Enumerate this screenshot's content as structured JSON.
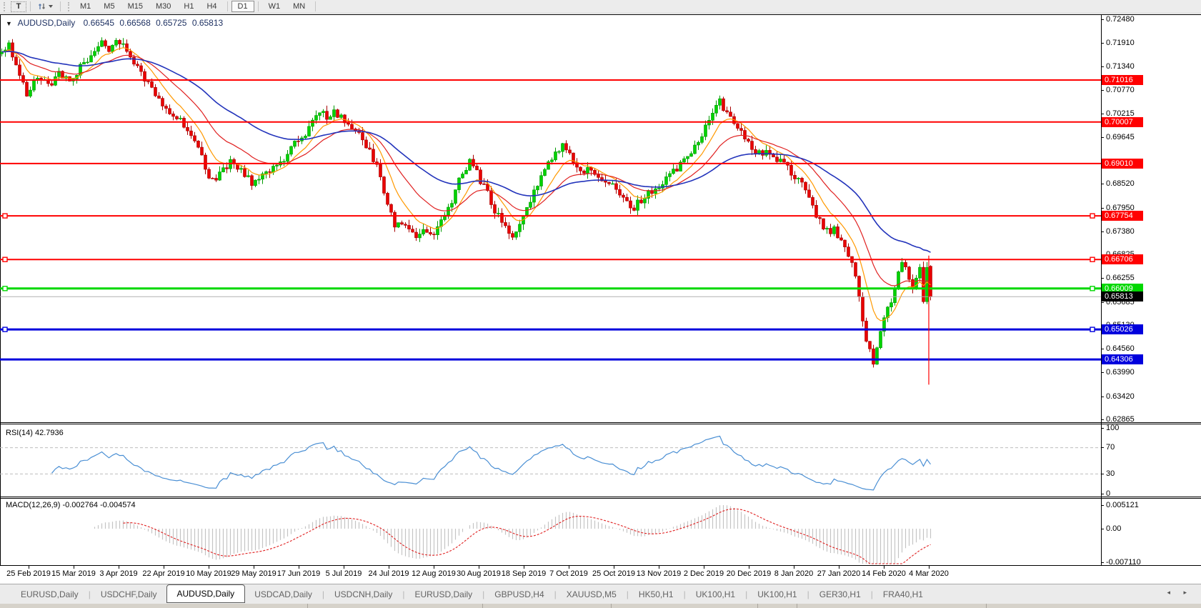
{
  "toolbar": {
    "text_tool_label": "T",
    "timeframes": [
      "M1",
      "M5",
      "M15",
      "M30",
      "H1",
      "H4",
      "D1",
      "W1",
      "MN"
    ],
    "active_timeframe": "D1"
  },
  "chart_header": {
    "symbol": "AUDUSD,Daily",
    "open": "0.66545",
    "high": "0.66568",
    "low": "0.65725",
    "close": "0.65813"
  },
  "price_axis_ticks": [
    "0.72480",
    "0.71910",
    "0.71340",
    "0.70770",
    "0.70215",
    "0.69645",
    "0.68520",
    "0.67950",
    "0.67380",
    "0.66825",
    "0.66255",
    "0.65685",
    "0.65130",
    "0.64560",
    "0.63990",
    "0.63420",
    "0.62865"
  ],
  "current_price_label": "0.65813",
  "hlines": [
    {
      "price": 0.71016,
      "label": "0.71016",
      "color": "#ff0000",
      "width": 2,
      "handles": false
    },
    {
      "price": 0.70007,
      "label": "0.70007",
      "color": "#ff0000",
      "width": 2,
      "handles": false
    },
    {
      "price": 0.6901,
      "label": "0.69010",
      "color": "#ff0000",
      "width": 2,
      "handles": false
    },
    {
      "price": 0.67754,
      "label": "0.67754",
      "color": "#ff0000",
      "width": 2,
      "handles": true
    },
    {
      "price": 0.66706,
      "label": "0.66706",
      "color": "#ff0000",
      "width": 2,
      "handles": true
    },
    {
      "price": 0.66009,
      "label": "0.66009",
      "color": "#00d800",
      "width": 3,
      "handles": true
    },
    {
      "price": 0.65026,
      "label": "0.65026",
      "color": "#0000dd",
      "width": 3,
      "handles": true
    },
    {
      "price": 0.64306,
      "label": "0.64306",
      "color": "#0000dd",
      "width": 3,
      "handles": false
    }
  ],
  "rsi_panel": {
    "label": "RSI(14) 42.7936",
    "axis_ticks": [
      "100",
      "70",
      "30",
      "0"
    ],
    "levels": [
      70,
      30
    ],
    "value": 42.7936
  },
  "macd_panel": {
    "label": "MACD(12,26,9) -0.002764 -0.004574",
    "axis_ticks": [
      "0.005121",
      "0.00",
      "-0.007110"
    ],
    "macd_value": -0.002764,
    "signal_value": -0.004574
  },
  "date_axis": [
    "25 Feb 2019",
    "15 Mar 2019",
    "3 Apr 2019",
    "22 Apr 2019",
    "10 May 2019",
    "29 May 2019",
    "17 Jun 2019",
    "5 Jul 2019",
    "24 Jul 2019",
    "12 Aug 2019",
    "30 Aug 2019",
    "18 Sep 2019",
    "7 Oct 2019",
    "25 Oct 2019",
    "13 Nov 2019",
    "2 Dec 2019",
    "20 Dec 2019",
    "8 Jan 2020",
    "27 Jan 2020",
    "14 Feb 2020",
    "4 Mar 2020"
  ],
  "tabs": {
    "items": [
      "EURUSD,Daily",
      "USDCHF,Daily",
      "AUDUSD,Daily",
      "USDCAD,Daily",
      "USDCNH,Daily",
      "EURUSD,Daily",
      "GBPUSD,H4",
      "XAUUSD,M5",
      "HK50,H1",
      "UK100,H1",
      "UK100,H1",
      "GER30,H1",
      "FRA40,H1"
    ],
    "active_index": 2,
    "nav_arrows": "◂ ▸"
  },
  "colors": {
    "up": "#00d200",
    "up_stroke": "#009a00",
    "down": "#e80000",
    "down_stroke": "#a80000",
    "ma_fast": "#ff9900",
    "ma_mid": "#e02020",
    "ma_slow": "#2233bb",
    "rsi": "#4a8fd4",
    "rsi_level_dash": "#bdbdbd",
    "macd_hist": "#c4c4c4",
    "macd_signal": "#e02020",
    "current_price_line": "#b0b0b0",
    "current_price_box": "#000000",
    "vline": "#ff0000"
  },
  "chart_data": {
    "type": "candlestick",
    "symbol": "AUDUSD",
    "timeframe": "Daily",
    "title": "AUDUSD,Daily 0.66545 0.66568 0.65725 0.65813",
    "x_range": [
      "25 Feb 2019",
      "6 Mar 2020"
    ],
    "y_range": [
      0.62865,
      0.7248
    ],
    "bar_count": 261,
    "last_bar": {
      "open": 0.66545,
      "high": 0.66568,
      "low": 0.65725,
      "close": 0.65813
    },
    "close_path": [
      [
        0,
        0.7165
      ],
      [
        2,
        0.7191
      ],
      [
        5,
        0.7114
      ],
      [
        7,
        0.7071
      ],
      [
        10,
        0.7105
      ],
      [
        13,
        0.7088
      ],
      [
        16,
        0.7114
      ],
      [
        19,
        0.7097
      ],
      [
        22,
        0.7131
      ],
      [
        25,
        0.7165
      ],
      [
        28,
        0.7194
      ],
      [
        30,
        0.7174
      ],
      [
        32,
        0.7191
      ],
      [
        34,
        0.7182
      ],
      [
        37,
        0.7139
      ],
      [
        40,
        0.7105
      ],
      [
        43,
        0.7071
      ],
      [
        46,
        0.7036
      ],
      [
        49,
        0.7011
      ],
      [
        52,
        0.6985
      ],
      [
        55,
        0.6933
      ],
      [
        58,
        0.6873
      ],
      [
        60,
        0.6865
      ],
      [
        62,
        0.6891
      ],
      [
        64,
        0.6903
      ],
      [
        67,
        0.6882
      ],
      [
        70,
        0.6856
      ],
      [
        72,
        0.6865
      ],
      [
        75,
        0.6882
      ],
      [
        77,
        0.6899
      ],
      [
        80,
        0.6916
      ],
      [
        82,
        0.6951
      ],
      [
        85,
        0.6976
      ],
      [
        87,
        0.7002
      ],
      [
        90,
        0.7033
      ],
      [
        91,
        0.7011
      ],
      [
        93,
        0.7028
      ],
      [
        96,
        0.7002
      ],
      [
        98,
        0.6985
      ],
      [
        101,
        0.6959
      ],
      [
        103,
        0.6933
      ],
      [
        105,
        0.6891
      ],
      [
        107,
        0.6831
      ],
      [
        109,
        0.6779
      ],
      [
        110,
        0.6745
      ],
      [
        112,
        0.6762
      ],
      [
        114,
        0.6736
      ],
      [
        116,
        0.6719
      ],
      [
        118,
        0.6745
      ],
      [
        120,
        0.6728
      ],
      [
        122,
        0.6748
      ],
      [
        124,
        0.677
      ],
      [
        126,
        0.6813
      ],
      [
        128,
        0.6868
      ],
      [
        130,
        0.6891
      ],
      [
        131,
        0.6903
      ],
      [
        133,
        0.6882
      ],
      [
        134,
        0.6856
      ],
      [
        136,
        0.6831
      ],
      [
        138,
        0.6788
      ],
      [
        140,
        0.6762
      ],
      [
        142,
        0.6736
      ],
      [
        143,
        0.6722
      ],
      [
        145,
        0.6753
      ],
      [
        147,
        0.6788
      ],
      [
        149,
        0.6831
      ],
      [
        151,
        0.6873
      ],
      [
        153,
        0.6908
      ],
      [
        155,
        0.6925
      ],
      [
        157,
        0.6942
      ],
      [
        159,
        0.6925
      ],
      [
        161,
        0.6899
      ],
      [
        163,
        0.6882
      ],
      [
        165,
        0.6891
      ],
      [
        167,
        0.6873
      ],
      [
        169,
        0.6856
      ],
      [
        171,
        0.6848
      ],
      [
        173,
        0.6831
      ],
      [
        175,
        0.6805
      ],
      [
        177,
        0.6796
      ],
      [
        179,
        0.6813
      ],
      [
        181,
        0.6831
      ],
      [
        183,
        0.6839
      ],
      [
        185,
        0.6856
      ],
      [
        187,
        0.6873
      ],
      [
        189,
        0.6891
      ],
      [
        191,
        0.6908
      ],
      [
        193,
        0.6925
      ],
      [
        195,
        0.6951
      ],
      [
        197,
        0.6993
      ],
      [
        199,
        0.7028
      ],
      [
        201,
        0.7048
      ],
      [
        202,
        0.7036
      ],
      [
        204,
        0.7019
      ],
      [
        206,
        0.6993
      ],
      [
        208,
        0.6968
      ],
      [
        210,
        0.6942
      ],
      [
        212,
        0.6925
      ],
      [
        214,
        0.6933
      ],
      [
        216,
        0.692
      ],
      [
        218,
        0.6908
      ],
      [
        220,
        0.6891
      ],
      [
        222,
        0.6868
      ],
      [
        224,
        0.6848
      ],
      [
        226,
        0.6817
      ],
      [
        228,
        0.6779
      ],
      [
        230,
        0.6748
      ],
      [
        232,
        0.6728
      ],
      [
        233,
        0.6741
      ],
      [
        235,
        0.6719
      ],
      [
        236,
        0.6693
      ],
      [
        238,
        0.6659
      ],
      [
        239,
        0.6625
      ],
      [
        240,
        0.6582
      ],
      [
        241,
        0.6522
      ],
      [
        242,
        0.647
      ],
      [
        244,
        0.6427
      ],
      [
        245,
        0.6453
      ],
      [
        246,
        0.6496
      ],
      [
        247,
        0.6539
      ],
      [
        248,
        0.656
      ],
      [
        249,
        0.6573
      ],
      [
        250,
        0.6608
      ],
      [
        251,
        0.6633
      ],
      [
        252,
        0.6659
      ],
      [
        253,
        0.6645
      ],
      [
        254,
        0.662
      ],
      [
        255,
        0.66
      ],
      [
        256,
        0.663
      ],
      [
        257,
        0.6655
      ],
      [
        258,
        0.6578
      ],
      [
        259,
        0.66545
      ],
      [
        260,
        0.65813
      ]
    ],
    "moving_averages": [
      {
        "name": "fast",
        "period": 9,
        "color": "#ff9900"
      },
      {
        "name": "mid",
        "period": 21,
        "color": "#e02020"
      },
      {
        "name": "slow",
        "period": 50,
        "color": "#2233bb"
      }
    ],
    "horizontal_levels": [
      0.71016,
      0.70007,
      0.6901,
      0.67754,
      0.66706,
      0.66009,
      0.65026,
      0.64306
    ],
    "vertical_line": {
      "bar_index": 259,
      "price_top": 0.668,
      "price_bottom": 0.637,
      "color": "#ff0000"
    },
    "indicators": [
      {
        "name": "RSI",
        "period": 14,
        "last_value": 42.7936,
        "levels": [
          70,
          30
        ],
        "range": [
          0,
          100
        ]
      },
      {
        "name": "MACD",
        "fast": 12,
        "slow": 26,
        "signal": 9,
        "last_values": [
          -0.002764,
          -0.004574
        ],
        "axis_range": [
          -0.00711,
          0.005121
        ]
      }
    ]
  }
}
